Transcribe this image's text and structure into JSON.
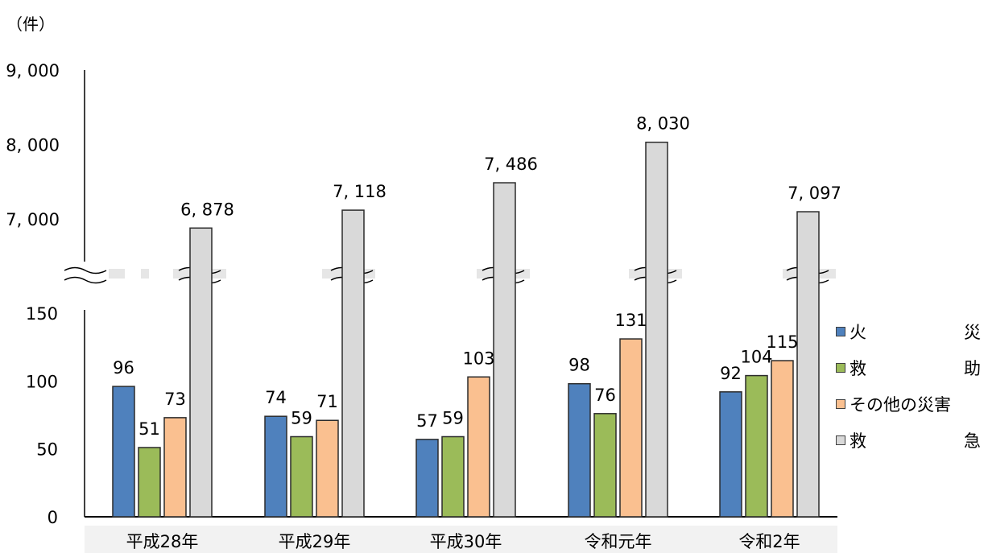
{
  "unit_label": "（件）",
  "chart_data": {
    "type": "bar",
    "categories": [
      "平成28年",
      "平成29年",
      "平成30年",
      "令和元年",
      "令和2年"
    ],
    "series": [
      {
        "name": "火　　災",
        "color": "#4f81bd",
        "values": [
          96,
          74,
          57,
          98,
          92
        ]
      },
      {
        "name": "救　　助",
        "color": "#9bbb59",
        "values": [
          51,
          59,
          59,
          76,
          104
        ]
      },
      {
        "name": "その他の災害",
        "color": "#fac090",
        "values": [
          73,
          71,
          103,
          131,
          115
        ]
      },
      {
        "name": "救　　急",
        "color": "#d9d9d9",
        "values": [
          6878,
          7118,
          7486,
          8030,
          7097
        ],
        "labels": [
          "6, 878",
          "7, 118",
          "7, 486",
          "8, 030",
          "7, 097"
        ]
      }
    ],
    "axis_break": true,
    "lower_range": [
      0,
      150
    ],
    "lower_ticks": [
      "0",
      "50",
      "100",
      "150"
    ],
    "upper_range": [
      7000,
      9000
    ],
    "upper_ticks": [
      "7, 000",
      "8, 000",
      "9, 000"
    ],
    "legend_position": "right"
  }
}
